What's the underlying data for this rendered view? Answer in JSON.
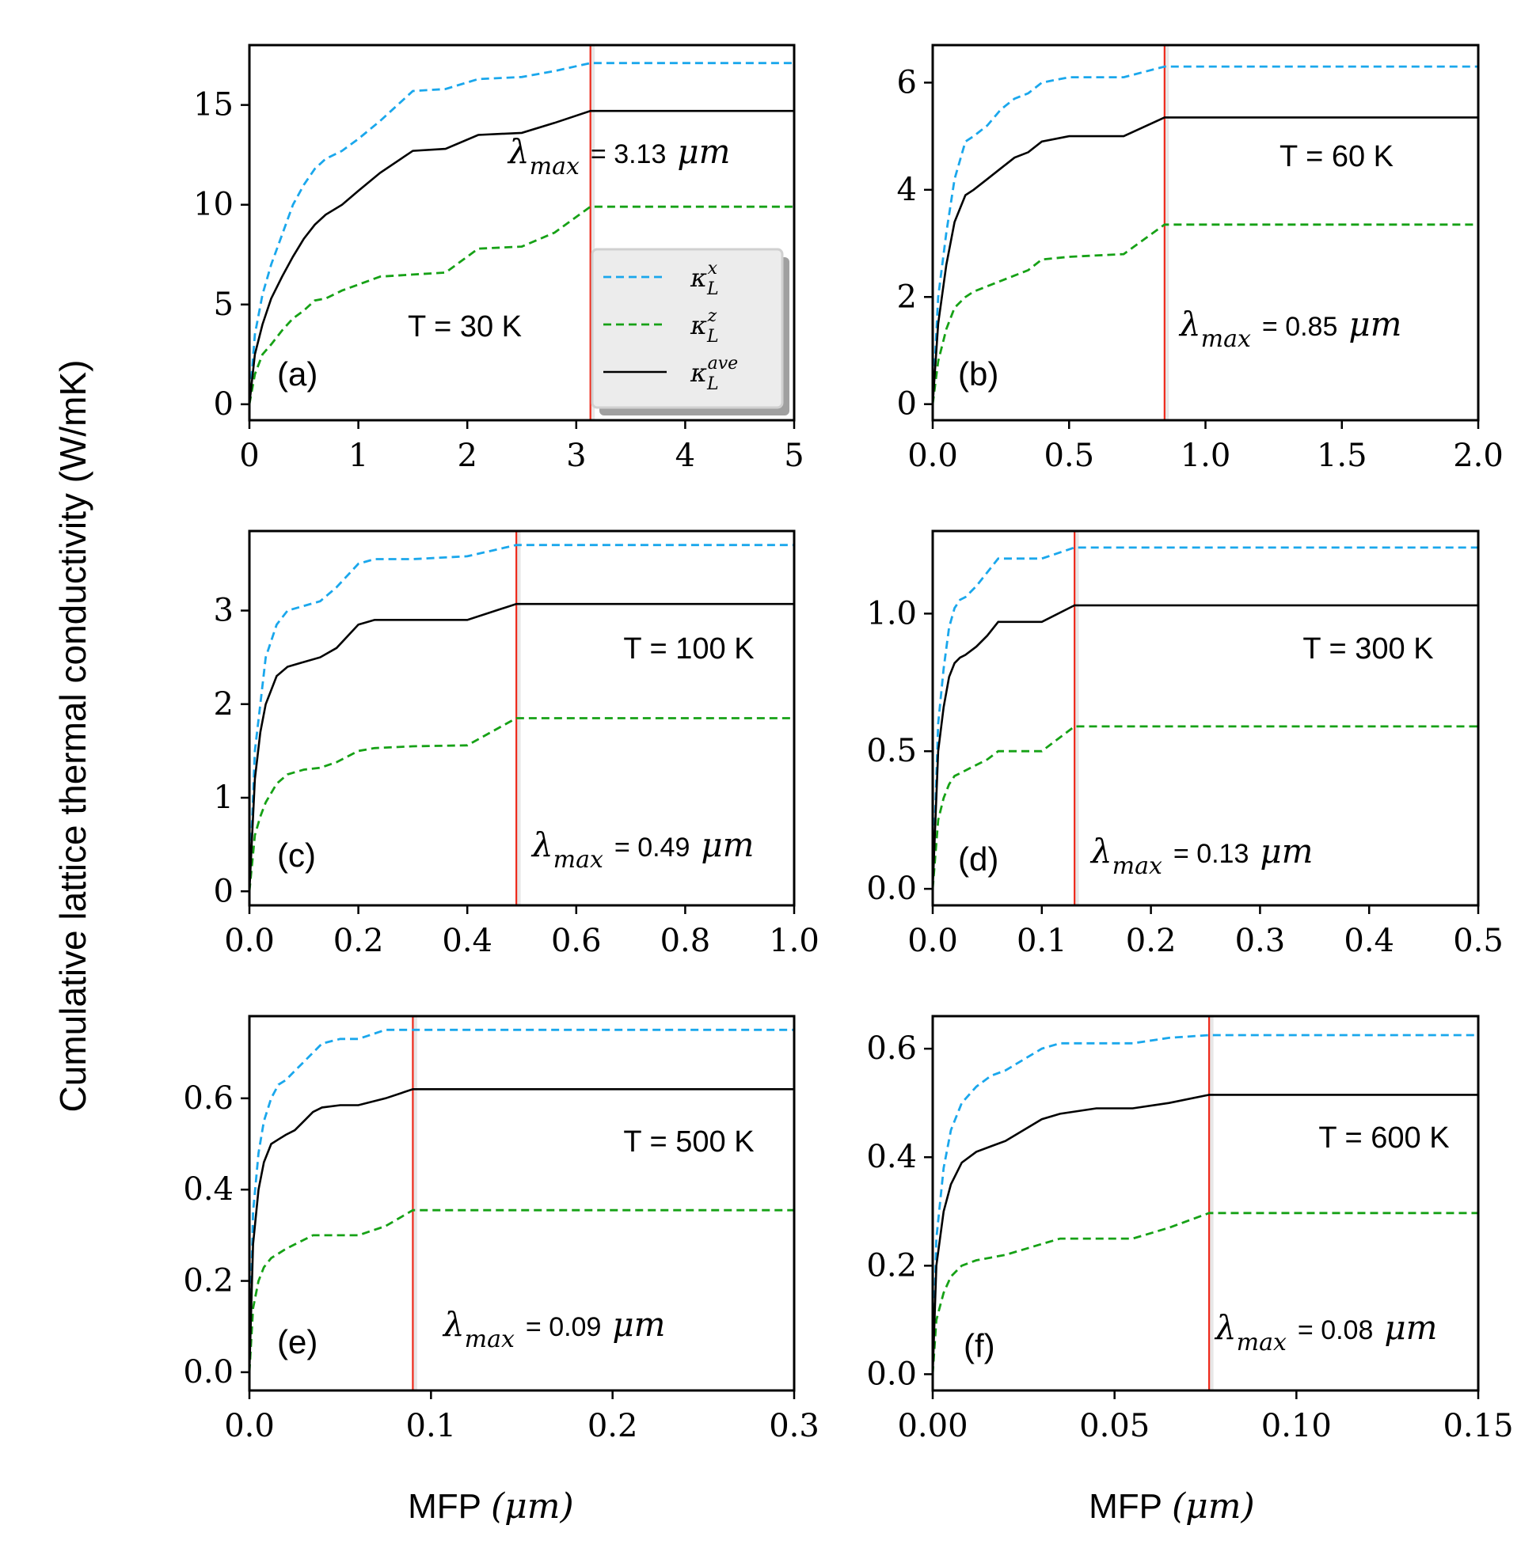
{
  "figure": {
    "ylabel": "Cumulative lattice thermal conductivity (W/mK)",
    "xlabel_text": "MFP",
    "xlabel_unit": "(μm)",
    "lambda_symbol": "λ",
    "lambda_sub": "max",
    "unit_symbol": "μm",
    "legend": {
      "kx_main": "κ",
      "kx_sub": "L",
      "kx_sup": "x",
      "kz_main": "κ",
      "kz_sub": "L",
      "kz_sup": "z",
      "ka_main": "κ",
      "ka_sub": "L",
      "ka_sup": "ave"
    }
  },
  "colors": {
    "kx": "#1aa7ec",
    "kz": "#16a116",
    "ka": "#000000",
    "lambda": "#ee2a1b"
  },
  "chart_data": [
    {
      "type": "line",
      "panel": "(a)",
      "temperature": "T = 30 K",
      "lambda_value": "= 3.13",
      "lambda_max": 3.13,
      "xlim": [
        0,
        5
      ],
      "ylim": [
        -0.8,
        18
      ],
      "xticks": [
        "0",
        "1",
        "2",
        "3",
        "4",
        "5"
      ],
      "xtick_values": [
        0,
        1,
        2,
        3,
        4,
        5
      ],
      "yticks": [
        "0",
        "5",
        "10",
        "15"
      ],
      "ytick_values": [
        0,
        5,
        10,
        15
      ],
      "series": [
        {
          "name": "kappa_L^x",
          "x": [
            0,
            0.05,
            0.12,
            0.2,
            0.3,
            0.4,
            0.5,
            0.6,
            0.7,
            0.85,
            1.0,
            1.2,
            1.5,
            1.8,
            2.1,
            2.5,
            2.8,
            3.13,
            5
          ],
          "y": [
            0,
            3.5,
            5.5,
            7.0,
            8.5,
            10.0,
            11.0,
            11.8,
            12.3,
            12.7,
            13.3,
            14.2,
            15.7,
            15.8,
            16.3,
            16.4,
            16.7,
            17.1,
            17.1
          ]
        },
        {
          "name": "kappa_L^z",
          "x": [
            0,
            0.05,
            0.12,
            0.2,
            0.3,
            0.4,
            0.5,
            0.6,
            0.7,
            0.85,
            1.0,
            1.2,
            1.5,
            1.8,
            2.1,
            2.5,
            2.8,
            3.13,
            5
          ],
          "y": [
            0,
            1.5,
            2.5,
            3.0,
            3.7,
            4.3,
            4.7,
            5.2,
            5.3,
            5.7,
            6.0,
            6.4,
            6.5,
            6.6,
            7.8,
            7.9,
            8.6,
            9.9,
            9.9
          ]
        },
        {
          "name": "kappa_L^ave",
          "x": [
            0,
            0.05,
            0.12,
            0.2,
            0.3,
            0.4,
            0.5,
            0.6,
            0.7,
            0.85,
            1.0,
            1.2,
            1.5,
            1.8,
            2.1,
            2.5,
            2.8,
            3.13,
            5
          ],
          "y": [
            0,
            2.5,
            4.0,
            5.3,
            6.4,
            7.4,
            8.3,
            9.0,
            9.5,
            10.0,
            10.7,
            11.6,
            12.7,
            12.8,
            13.5,
            13.6,
            14.1,
            14.7,
            14.7
          ]
        }
      ]
    },
    {
      "type": "line",
      "panel": "(b)",
      "temperature": "T = 60 K",
      "lambda_value": "= 0.85",
      "lambda_max": 0.85,
      "xlim": [
        0,
        2
      ],
      "ylim": [
        -0.3,
        6.7
      ],
      "xticks": [
        "0.0",
        "0.5",
        "1.0",
        "1.5",
        "2.0"
      ],
      "xtick_values": [
        0,
        0.5,
        1.0,
        1.5,
        2.0
      ],
      "yticks": [
        "0",
        "2",
        "4",
        "6"
      ],
      "ytick_values": [
        0,
        2,
        4,
        6
      ],
      "series": [
        {
          "name": "kappa_L^x",
          "x": [
            0,
            0.02,
            0.05,
            0.08,
            0.12,
            0.15,
            0.2,
            0.25,
            0.3,
            0.35,
            0.4,
            0.5,
            0.7,
            0.85,
            2.0
          ],
          "y": [
            0,
            2.0,
            3.2,
            4.2,
            4.9,
            5.0,
            5.2,
            5.5,
            5.7,
            5.8,
            6.0,
            6.1,
            6.1,
            6.3,
            6.3
          ]
        },
        {
          "name": "kappa_L^z",
          "x": [
            0,
            0.02,
            0.05,
            0.08,
            0.12,
            0.15,
            0.2,
            0.25,
            0.3,
            0.35,
            0.4,
            0.5,
            0.7,
            0.85,
            2.0
          ],
          "y": [
            0,
            0.8,
            1.4,
            1.8,
            2.0,
            2.1,
            2.2,
            2.3,
            2.4,
            2.5,
            2.7,
            2.75,
            2.8,
            3.35,
            3.35
          ]
        },
        {
          "name": "kappa_L^ave",
          "x": [
            0,
            0.02,
            0.05,
            0.08,
            0.12,
            0.15,
            0.2,
            0.25,
            0.3,
            0.35,
            0.4,
            0.5,
            0.7,
            0.85,
            2.0
          ],
          "y": [
            0,
            1.5,
            2.6,
            3.4,
            3.9,
            4.0,
            4.2,
            4.4,
            4.6,
            4.7,
            4.9,
            5.0,
            5.0,
            5.35,
            5.35
          ]
        }
      ]
    },
    {
      "type": "line",
      "panel": "(c)",
      "temperature": "T = 100 K",
      "lambda_value": "= 0.49",
      "lambda_max": 0.49,
      "xlim": [
        0,
        1
      ],
      "ylim": [
        -0.15,
        3.85
      ],
      "xticks": [
        "0.0",
        "0.2",
        "0.4",
        "0.6",
        "0.8",
        "1.0"
      ],
      "xtick_values": [
        0,
        0.2,
        0.4,
        0.6,
        0.8,
        1.0
      ],
      "yticks": [
        "0",
        "1",
        "2",
        "3"
      ],
      "ytick_values": [
        0,
        1,
        2,
        3
      ],
      "series": [
        {
          "name": "kappa_L^x",
          "x": [
            0,
            0.01,
            0.02,
            0.03,
            0.05,
            0.07,
            0.1,
            0.13,
            0.16,
            0.2,
            0.23,
            0.3,
            0.4,
            0.49,
            1.0
          ],
          "y": [
            0,
            1.5,
            2.0,
            2.5,
            2.85,
            3.0,
            3.05,
            3.1,
            3.25,
            3.5,
            3.55,
            3.55,
            3.58,
            3.7,
            3.7
          ]
        },
        {
          "name": "kappa_L^z",
          "x": [
            0,
            0.01,
            0.02,
            0.03,
            0.05,
            0.07,
            0.1,
            0.13,
            0.16,
            0.2,
            0.23,
            0.3,
            0.4,
            0.49,
            1.0
          ],
          "y": [
            0,
            0.6,
            0.8,
            0.95,
            1.15,
            1.25,
            1.3,
            1.32,
            1.38,
            1.5,
            1.53,
            1.55,
            1.56,
            1.85,
            1.85
          ]
        },
        {
          "name": "kappa_L^ave",
          "x": [
            0,
            0.01,
            0.02,
            0.03,
            0.05,
            0.07,
            0.1,
            0.13,
            0.16,
            0.2,
            0.23,
            0.3,
            0.4,
            0.49,
            1.0
          ],
          "y": [
            0,
            1.2,
            1.7,
            2.0,
            2.3,
            2.4,
            2.45,
            2.5,
            2.6,
            2.85,
            2.9,
            2.9,
            2.9,
            3.07,
            3.07
          ]
        }
      ]
    },
    {
      "type": "line",
      "panel": "(d)",
      "temperature": "T = 300 K",
      "lambda_value": "= 0.13",
      "lambda_max": 0.13,
      "xlim": [
        0,
        0.5
      ],
      "ylim": [
        -0.06,
        1.3
      ],
      "xticks": [
        "0.0",
        "0.1",
        "0.2",
        "0.3",
        "0.4",
        "0.5"
      ],
      "xtick_values": [
        0,
        0.1,
        0.2,
        0.3,
        0.4,
        0.5
      ],
      "yticks": [
        "0.0",
        "0.5",
        "1.0"
      ],
      "ytick_values": [
        0,
        0.5,
        1.0
      ],
      "series": [
        {
          "name": "kappa_L^x",
          "x": [
            0,
            0.005,
            0.01,
            0.015,
            0.02,
            0.025,
            0.03,
            0.04,
            0.05,
            0.06,
            0.1,
            0.13,
            0.5
          ],
          "y": [
            0,
            0.6,
            0.8,
            0.95,
            1.02,
            1.05,
            1.06,
            1.1,
            1.15,
            1.2,
            1.2,
            1.24,
            1.24
          ]
        },
        {
          "name": "kappa_L^z",
          "x": [
            0,
            0.005,
            0.01,
            0.015,
            0.02,
            0.025,
            0.03,
            0.04,
            0.05,
            0.06,
            0.1,
            0.13,
            0.5
          ],
          "y": [
            0,
            0.25,
            0.33,
            0.38,
            0.41,
            0.42,
            0.43,
            0.45,
            0.47,
            0.5,
            0.5,
            0.59,
            0.59
          ]
        },
        {
          "name": "kappa_L^ave",
          "x": [
            0,
            0.005,
            0.01,
            0.015,
            0.02,
            0.025,
            0.03,
            0.04,
            0.05,
            0.06,
            0.1,
            0.13,
            0.5
          ],
          "y": [
            0,
            0.5,
            0.66,
            0.77,
            0.82,
            0.84,
            0.85,
            0.88,
            0.92,
            0.97,
            0.97,
            1.03,
            1.03
          ]
        }
      ]
    },
    {
      "type": "line",
      "panel": "(e)",
      "temperature": "T = 500 K",
      "lambda_value": "= 0.09",
      "lambda_max": 0.09,
      "xlim": [
        0,
        0.3
      ],
      "ylim": [
        -0.04,
        0.78
      ],
      "xticks": [
        "0.0",
        "0.1",
        "0.2",
        "0.3"
      ],
      "xtick_values": [
        0,
        0.1,
        0.2,
        0.3
      ],
      "yticks": [
        "0.0",
        "0.2",
        "0.4",
        "0.6"
      ],
      "ytick_values": [
        0,
        0.2,
        0.4,
        0.6
      ],
      "series": [
        {
          "name": "kappa_L^x",
          "x": [
            0,
            0.002,
            0.005,
            0.008,
            0.012,
            0.016,
            0.02,
            0.025,
            0.03,
            0.035,
            0.04,
            0.05,
            0.06,
            0.075,
            0.09,
            0.3
          ],
          "y": [
            0,
            0.35,
            0.48,
            0.55,
            0.6,
            0.63,
            0.64,
            0.66,
            0.68,
            0.7,
            0.72,
            0.73,
            0.73,
            0.75,
            0.75,
            0.75
          ]
        },
        {
          "name": "kappa_L^z",
          "x": [
            0,
            0.002,
            0.005,
            0.008,
            0.012,
            0.016,
            0.02,
            0.025,
            0.03,
            0.035,
            0.04,
            0.05,
            0.06,
            0.075,
            0.09,
            0.3
          ],
          "y": [
            0,
            0.14,
            0.2,
            0.23,
            0.25,
            0.26,
            0.27,
            0.28,
            0.29,
            0.3,
            0.3,
            0.3,
            0.3,
            0.32,
            0.355,
            0.355
          ]
        },
        {
          "name": "kappa_L^ave",
          "x": [
            0,
            0.002,
            0.005,
            0.008,
            0.012,
            0.016,
            0.02,
            0.025,
            0.03,
            0.035,
            0.04,
            0.05,
            0.06,
            0.075,
            0.09,
            0.3
          ],
          "y": [
            0,
            0.28,
            0.4,
            0.46,
            0.5,
            0.51,
            0.52,
            0.53,
            0.55,
            0.57,
            0.58,
            0.585,
            0.585,
            0.6,
            0.62,
            0.62
          ]
        }
      ]
    },
    {
      "type": "line",
      "panel": "(f)",
      "temperature": "T = 600 K",
      "lambda_value": "= 0.08",
      "lambda_max": 0.076,
      "xlim": [
        0,
        0.15
      ],
      "ylim": [
        -0.03,
        0.66
      ],
      "xticks": [
        "0.00",
        "0.05",
        "0.10",
        "0.15"
      ],
      "xtick_values": [
        0,
        0.05,
        0.1,
        0.15
      ],
      "yticks": [
        "0.0",
        "0.2",
        "0.4",
        "0.6"
      ],
      "ytick_values": [
        0,
        0.2,
        0.4,
        0.6
      ],
      "series": [
        {
          "name": "kappa_L^x",
          "x": [
            0,
            0.001,
            0.003,
            0.005,
            0.008,
            0.012,
            0.016,
            0.02,
            0.025,
            0.03,
            0.035,
            0.045,
            0.055,
            0.065,
            0.076,
            0.15
          ],
          "y": [
            0,
            0.25,
            0.38,
            0.45,
            0.5,
            0.53,
            0.55,
            0.56,
            0.58,
            0.6,
            0.61,
            0.61,
            0.61,
            0.62,
            0.625,
            0.625
          ]
        },
        {
          "name": "kappa_L^z",
          "x": [
            0,
            0.001,
            0.003,
            0.005,
            0.008,
            0.012,
            0.016,
            0.02,
            0.025,
            0.03,
            0.035,
            0.045,
            0.055,
            0.065,
            0.076,
            0.15
          ],
          "y": [
            0,
            0.1,
            0.15,
            0.18,
            0.2,
            0.21,
            0.215,
            0.22,
            0.23,
            0.24,
            0.25,
            0.25,
            0.25,
            0.27,
            0.297,
            0.297
          ]
        },
        {
          "name": "kappa_L^ave",
          "x": [
            0,
            0.001,
            0.003,
            0.005,
            0.008,
            0.012,
            0.016,
            0.02,
            0.025,
            0.03,
            0.035,
            0.045,
            0.055,
            0.065,
            0.076,
            0.15
          ],
          "y": [
            0,
            0.2,
            0.3,
            0.35,
            0.39,
            0.41,
            0.42,
            0.43,
            0.45,
            0.47,
            0.48,
            0.49,
            0.49,
            0.5,
            0.515,
            0.515
          ]
        }
      ]
    }
  ]
}
